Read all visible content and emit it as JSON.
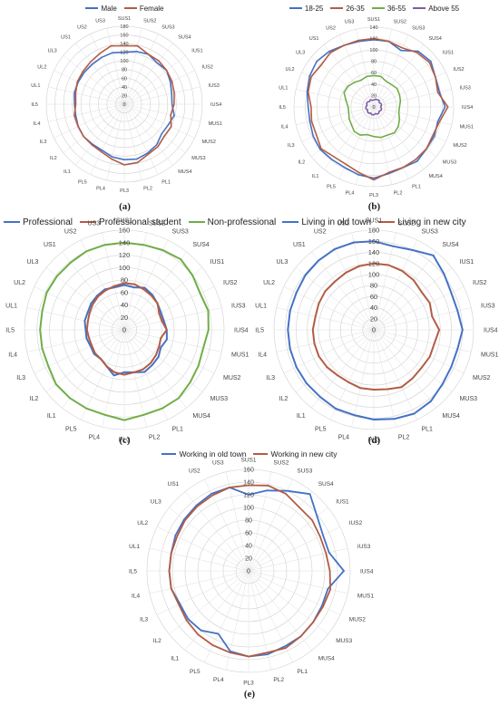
{
  "axes": [
    "SUS1",
    "SUS2",
    "SUS3",
    "SUS4",
    "IUS1",
    "IUS2",
    "IUS3",
    "IUS4",
    "MUS1",
    "MUS2",
    "MUS3",
    "MUS4",
    "PL1",
    "PL2",
    "PL3",
    "PL4",
    "PL5",
    "IL1",
    "IL2",
    "IL3",
    "IL4",
    "IL5",
    "UL1",
    "UL2",
    "UL3",
    "US1",
    "US2",
    "US3"
  ],
  "chart_data": [
    {
      "type": "radar",
      "label": "(a)",
      "rmax": 180,
      "ticks": [
        "0",
        "20",
        "40",
        "60",
        "80",
        "100",
        "120",
        "140",
        "160",
        "180"
      ],
      "series": [
        {
          "name": "Male",
          "color": "#4472c4",
          "values": [
            120,
            125,
            128,
            122,
            125,
            118,
            112,
            110,
            118,
            112,
            110,
            120,
            125,
            130,
            128,
            125,
            118,
            118,
            120,
            118,
            115,
            115,
            118,
            118,
            118,
            118,
            120,
            122
          ]
        },
        {
          "name": "Female",
          "color": "#b35c44",
          "values": [
            135,
            138,
            128,
            128,
            125,
            122,
            118,
            115,
            110,
            120,
            118,
            125,
            128,
            138,
            140,
            130,
            122,
            120,
            120,
            118,
            118,
            112,
            115,
            120,
            122,
            125,
            130,
            138
          ]
        }
      ]
    },
    {
      "type": "radar",
      "label": "(b)",
      "rmax": 140,
      "ticks": [
        "0",
        "20",
        "40",
        "60",
        "80",
        "100",
        "120",
        "140"
      ],
      "series": [
        {
          "name": "18-25",
          "color": "#4472c4",
          "values": [
            118,
            118,
            110,
            125,
            128,
            120,
            118,
            125,
            115,
            118,
            118,
            122,
            118,
            120,
            125,
            122,
            118,
            118,
            120,
            118,
            115,
            115,
            120,
            125,
            128,
            125,
            120,
            118
          ]
        },
        {
          "name": "26-35",
          "color": "#b35c44",
          "values": [
            120,
            118,
            115,
            122,
            125,
            120,
            115,
            130,
            118,
            115,
            118,
            118,
            118,
            118,
            128,
            118,
            112,
            112,
            118,
            112,
            112,
            110,
            118,
            122,
            118,
            122,
            120,
            120
          ]
        },
        {
          "name": "36-55",
          "color": "#70ad47",
          "values": [
            55,
            55,
            50,
            50,
            52,
            50,
            48,
            45,
            45,
            50,
            55,
            58,
            55,
            55,
            52,
            50,
            55,
            55,
            50,
            48,
            45,
            45,
            50,
            58,
            58,
            55,
            52,
            55
          ]
        },
        {
          "name": "Above 55",
          "color": "#7b5ea6",
          "values": [
            12,
            14,
            14,
            15,
            12,
            14,
            14,
            12,
            14,
            14,
            12,
            14,
            14,
            12,
            14,
            14,
            12,
            14,
            14,
            12,
            14,
            14,
            12,
            14,
            14,
            12,
            14,
            12
          ]
        }
      ]
    },
    {
      "type": "radar",
      "label": "(c)",
      "rmax": 160,
      "ticks": [
        "0",
        "20",
        "40",
        "60",
        "80",
        "100",
        "120",
        "140",
        "160"
      ],
      "series": [
        {
          "name": "Professional",
          "color": "#4472c4",
          "values": [
            72,
            70,
            75,
            72,
            68,
            65,
            65,
            68,
            70,
            65,
            70,
            72,
            75,
            70,
            68,
            75,
            65,
            60,
            62,
            60,
            62,
            62,
            65,
            65,
            68,
            70,
            72,
            70
          ]
        },
        {
          "name": "Professional student",
          "color": "#b35c44",
          "values": [
            75,
            75,
            72,
            70,
            68,
            62,
            62,
            68,
            60,
            62,
            65,
            68,
            70,
            70,
            72,
            70,
            65,
            60,
            60,
            58,
            58,
            60,
            60,
            62,
            65,
            68,
            70,
            72
          ]
        },
        {
          "name": "Non-professional",
          "color": "#70ad47",
          "values": [
            140,
            140,
            142,
            145,
            140,
            135,
            138,
            135,
            130,
            132,
            135,
            140,
            140,
            140,
            145,
            140,
            140,
            140,
            140,
            135,
            135,
            135,
            135,
            138,
            138,
            138,
            140,
            140
          ]
        }
      ]
    },
    {
      "type": "radar",
      "label": "(d)",
      "rmax": 180,
      "ticks": [
        "0",
        "20",
        "40",
        "60",
        "80",
        "100",
        "120",
        "140",
        "160",
        "180"
      ],
      "series": [
        {
          "name": "Living in old town",
          "color": "#4472c4",
          "values": [
            160,
            155,
            160,
            172,
            162,
            155,
            155,
            160,
            155,
            155,
            158,
            165,
            168,
            165,
            162,
            158,
            158,
            155,
            155,
            155,
            155,
            155,
            155,
            155,
            158,
            160,
            162,
            162
          ]
        },
        {
          "name": "Living in new city",
          "color": "#b35c44",
          "values": [
            120,
            120,
            118,
            115,
            110,
            112,
            108,
            118,
            112,
            112,
            110,
            112,
            115,
            110,
            108,
            108,
            105,
            105,
            108,
            110,
            110,
            110,
            108,
            110,
            112,
            112,
            115,
            118
          ]
        }
      ]
    },
    {
      "type": "radar",
      "label": "(e)",
      "rmax": 160,
      "ticks": [
        "0",
        "20",
        "40",
        "60",
        "80",
        "100",
        "120",
        "140",
        "160"
      ],
      "series": [
        {
          "name": "Working in old town",
          "color": "#4472c4",
          "values": [
            120,
            130,
            140,
            155,
            138,
            130,
            130,
            150,
            128,
            128,
            130,
            132,
            132,
            135,
            135,
            130,
            110,
            120,
            122,
            120,
            125,
            125,
            125,
            128,
            130,
            132,
            135,
            135
          ]
        },
        {
          "name": "Working in new city",
          "color": "#b35c44",
          "values": [
            135,
            138,
            135,
            128,
            128,
            125,
            125,
            128,
            132,
            130,
            130,
            132,
            135,
            132,
            135,
            132,
            130,
            128,
            125,
            122,
            125,
            125,
            125,
            125,
            128,
            130,
            132,
            135
          ]
        }
      ]
    }
  ]
}
